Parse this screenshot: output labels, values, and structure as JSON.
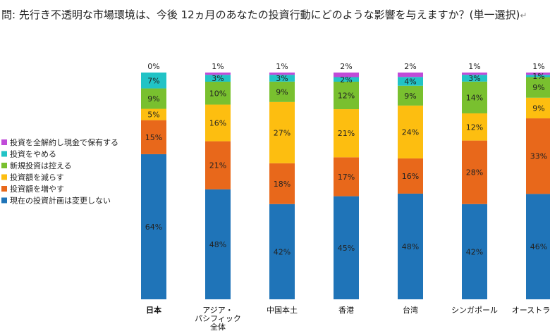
{
  "title": "問: 先行き不透明な市場環境は、今後 12ヵ月のあなたの投資行動にどのような影響を与えますか？(単一選択)",
  "title_mark": "↵",
  "chart_data": {
    "type": "bar",
    "stacked": true,
    "title": "問: 先行き不透明な市場環境は、今後 12ヵ月のあなたの投資行動にどのような影響を与えますか？(単一選択)",
    "categories": [
      [
        "日本"
      ],
      [
        "アジア・",
        "パシフィック",
        "全体"
      ],
      [
        "中国本土"
      ],
      [
        "香港"
      ],
      [
        "台湾"
      ],
      [
        "シンガポール"
      ],
      [
        "オーストラリア"
      ]
    ],
    "category_bold": [
      true,
      false,
      false,
      false,
      false,
      false,
      false
    ],
    "legend_position": "left",
    "unit": "%",
    "series": [
      {
        "name": "現在の投資計画は変更しない",
        "color": "#1f74b8",
        "values": [
          64,
          48,
          42,
          45,
          48,
          42,
          46
        ]
      },
      {
        "name": "投資額を増やす",
        "color": "#e8681b",
        "values": [
          15,
          21,
          18,
          17,
          16,
          28,
          33
        ]
      },
      {
        "name": " 投資額を減らす",
        "color": "#fdbe10",
        "values": [
          5,
          16,
          27,
          21,
          24,
          12,
          9
        ]
      },
      {
        "name": "新規投資は控える",
        "color": "#79c02f",
        "values": [
          9,
          10,
          9,
          12,
          9,
          14,
          9
        ]
      },
      {
        "name": " 投資をやめる",
        "color": "#21c3c6",
        "values": [
          7,
          3,
          3,
          2,
          4,
          3,
          1
        ]
      },
      {
        "name": "投資を全解約し現金で保有する",
        "color": "#c04bd8",
        "values": [
          0,
          1,
          1,
          2,
          2,
          1,
          1
        ]
      }
    ],
    "ylim": [
      0,
      100
    ],
    "grid": false
  }
}
